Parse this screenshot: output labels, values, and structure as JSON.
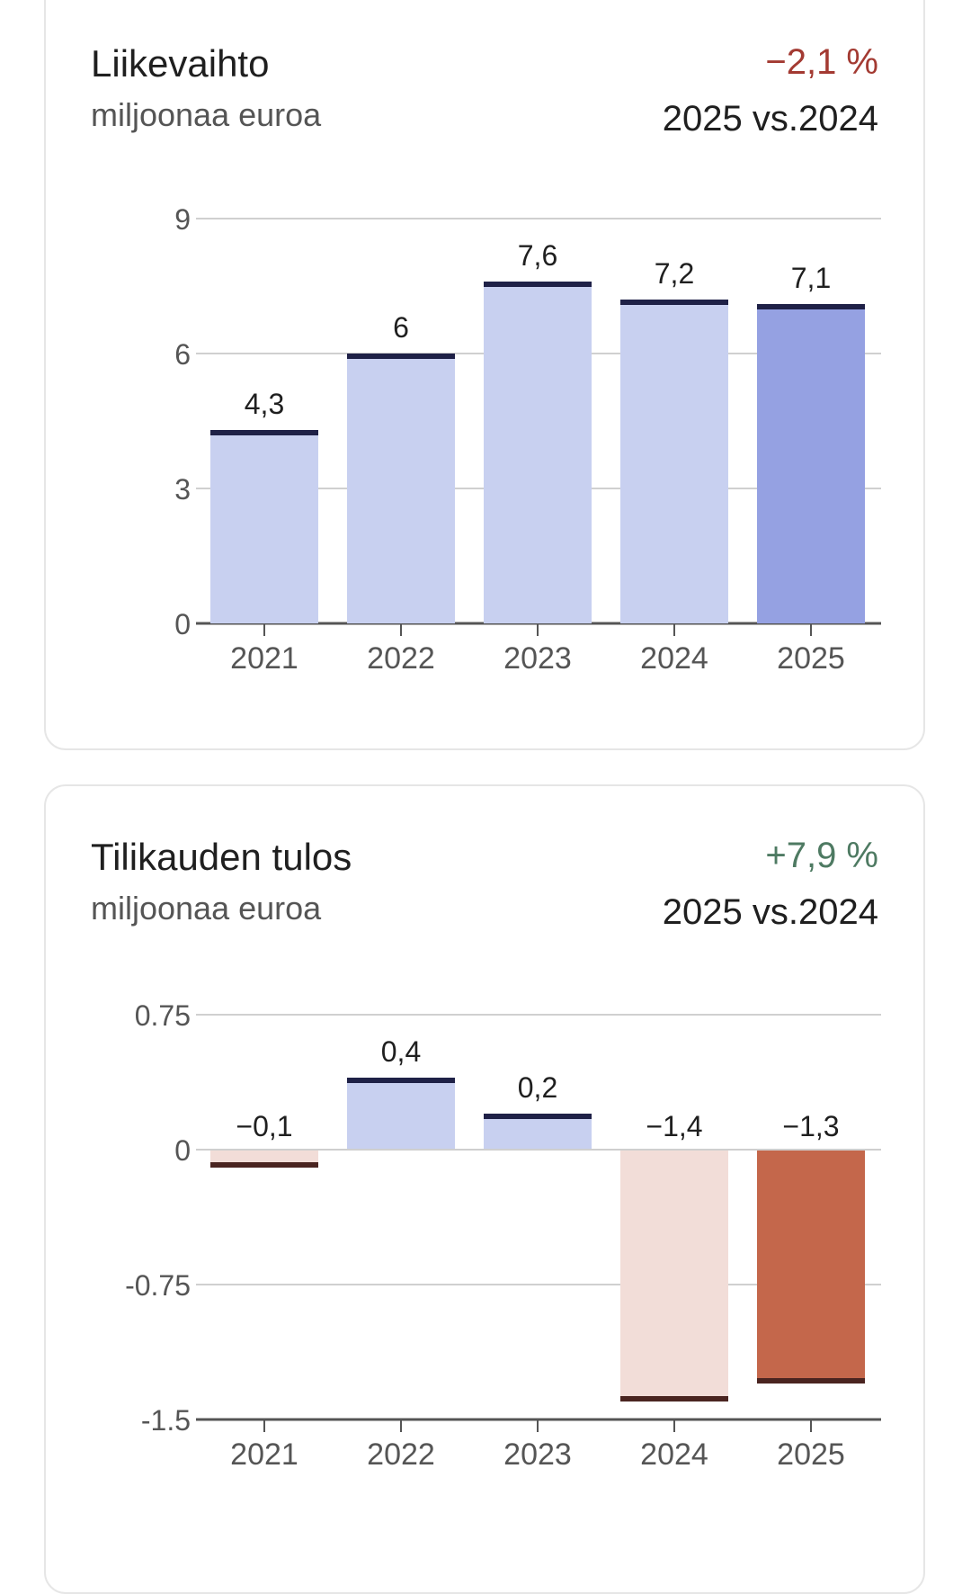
{
  "charts": [
    {
      "title": "Liikevaihto",
      "subtitle": "miljoonaa euroa",
      "change": "−2,1 %",
      "change_color": "#a33a32",
      "compare": "2025 vs.2024"
    },
    {
      "title": "Tilikauden tulos",
      "subtitle": "miljoonaa euroa",
      "change": "+7,9 %",
      "change_color": "#4e7a62",
      "compare": "2025 vs.2024"
    }
  ],
  "chart_data": [
    {
      "type": "bar",
      "title": "Liikevaihto",
      "subtitle": "miljoonaa euroa",
      "categories": [
        "2021",
        "2022",
        "2023",
        "2024",
        "2025"
      ],
      "values": [
        4.3,
        6.0,
        7.6,
        7.2,
        7.1
      ],
      "value_labels": [
        "4,3",
        "6",
        "7,6",
        "7,2",
        "7,1"
      ],
      "yticks": [
        0,
        3,
        6,
        9
      ],
      "ytick_labels": [
        "0",
        "3",
        "6",
        "9"
      ],
      "ylim": [
        0,
        9
      ],
      "grid": true,
      "highlight_index": 4,
      "colors": {
        "positive": "#c8d0f0",
        "positive_highlight": "#95a1e2",
        "cap_positive": "#1f2147",
        "negative": "#f2ddd8",
        "negative_highlight": "#c4674b",
        "cap_negative": "#4a2420"
      }
    },
    {
      "type": "bar",
      "title": "Tilikauden tulos",
      "subtitle": "miljoonaa euroa",
      "categories": [
        "2021",
        "2022",
        "2023",
        "2024",
        "2025"
      ],
      "values": [
        -0.1,
        0.4,
        0.2,
        -1.4,
        -1.3
      ],
      "value_labels": [
        "−0,1",
        "0,4",
        "0,2",
        "−1,4",
        "−1,3"
      ],
      "yticks": [
        -1.5,
        -0.75,
        0,
        0.75
      ],
      "ytick_labels": [
        "-1.5",
        "-0.75",
        "0",
        "0.75"
      ],
      "ylim": [
        -1.5,
        0.75
      ],
      "grid": true,
      "highlight_index": 4,
      "colors": {
        "positive": "#c8d0f0",
        "positive_highlight": "#95a1e2",
        "cap_positive": "#1f2147",
        "negative": "#f2ddd8",
        "negative_highlight": "#c4674b",
        "cap_negative": "#4a2420"
      }
    }
  ]
}
